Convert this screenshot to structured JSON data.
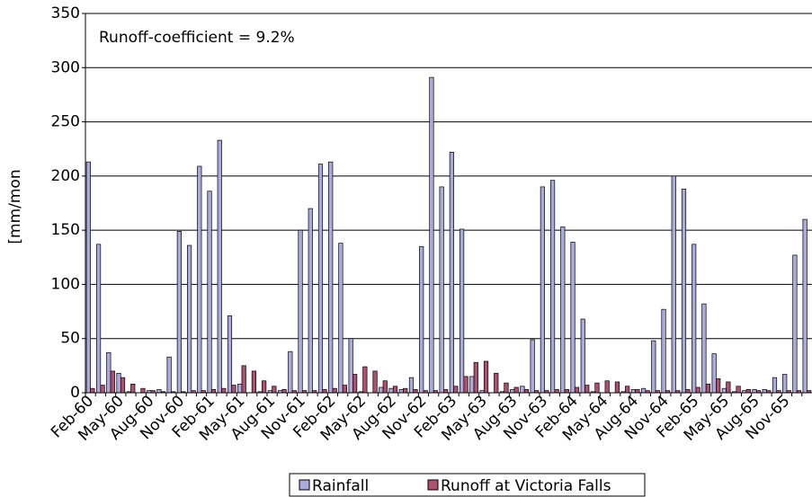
{
  "chart_data": {
    "type": "bar",
    "annotation": "Runoff-coefficient = 9.2%",
    "y_label": "[mm/mon",
    "categories": [
      "Feb-60",
      null,
      null,
      "May-60",
      null,
      null,
      "Aug-60",
      null,
      null,
      "Nov-60",
      null,
      null,
      "Feb-61",
      null,
      null,
      "May-61",
      null,
      null,
      "Aug-61",
      null,
      null,
      "Nov-61",
      null,
      null,
      "Feb-62",
      null,
      null,
      "May-62",
      null,
      null,
      "Aug-62",
      null,
      null,
      "Nov-62",
      null,
      null,
      "Feb-63",
      null,
      null,
      "May-63",
      null,
      null,
      "Aug-63",
      null,
      null,
      "Nov-63",
      null,
      null,
      "Feb-64",
      null,
      null,
      "May-64",
      null,
      null,
      "Aug-64",
      null,
      null,
      "Nov-64",
      null,
      null,
      "Feb-65",
      null,
      null,
      "May-65",
      null,
      null,
      "Aug-65",
      null,
      null,
      "Nov-65",
      null,
      null
    ],
    "series": [
      {
        "name": "Rainfall",
        "color": "#aaaadd",
        "values": [
          213,
          137,
          37,
          18,
          1,
          0,
          2,
          3,
          33,
          149,
          136,
          209,
          186,
          233,
          71,
          8,
          0,
          1,
          2,
          2,
          38,
          150,
          170,
          211,
          213,
          138,
          50,
          1,
          0,
          5,
          4,
          3,
          14,
          135,
          291,
          190,
          222,
          151,
          15,
          2,
          0,
          1,
          3,
          6,
          49,
          190,
          196,
          153,
          139,
          68,
          1,
          0,
          0,
          1,
          3,
          4,
          48,
          77,
          200,
          188,
          137,
          82,
          36,
          4,
          1,
          2,
          3,
          3,
          14,
          17,
          127,
          160
        ]
      },
      {
        "name": "Runoff at Victoria Falls",
        "color": "#b05070",
        "values": [
          4,
          7,
          20,
          14,
          8,
          4,
          2,
          1,
          1,
          1,
          2,
          2,
          3,
          4,
          7,
          25,
          20,
          11,
          6,
          3,
          2,
          2,
          2,
          3,
          4,
          7,
          17,
          24,
          20,
          11,
          6,
          4,
          3,
          2,
          2,
          3,
          6,
          15,
          28,
          29,
          18,
          9,
          5,
          3,
          2,
          2,
          3,
          3,
          5,
          7,
          9,
          11,
          10,
          6,
          3,
          2,
          2,
          2,
          2,
          3,
          5,
          8,
          13,
          10,
          6,
          3,
          2,
          2,
          2,
          2,
          2,
          2
        ]
      }
    ],
    "ylim": [
      0,
      350
    ],
    "yticks": [
      0,
      50,
      100,
      150,
      200,
      250,
      300,
      350
    ],
    "grid": true
  }
}
